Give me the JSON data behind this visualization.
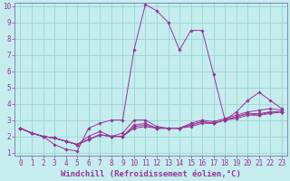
{
  "xlabel": "Windchill (Refroidissement éolien,°C)",
  "background_color": "#c5eded",
  "grid_color": "#9fd8d8",
  "line_color": "#993399",
  "spine_color": "#7777aa",
  "xlim": [
    -0.5,
    23.5
  ],
  "ylim": [
    0.8,
    10.2
  ],
  "xticks": [
    0,
    1,
    2,
    3,
    4,
    5,
    6,
    7,
    8,
    9,
    10,
    11,
    12,
    13,
    14,
    15,
    16,
    17,
    18,
    19,
    20,
    21,
    22,
    23
  ],
  "yticks": [
    1,
    2,
    3,
    4,
    5,
    6,
    7,
    8,
    9,
    10
  ],
  "lines": [
    {
      "x": [
        0,
        1,
        2,
        3,
        4,
        5,
        6,
        7,
        8,
        9,
        10,
        11,
        12,
        13,
        14,
        15,
        16,
        17,
        18,
        19,
        20,
        21,
        22,
        23
      ],
      "y": [
        2.5,
        2.2,
        2.0,
        1.5,
        1.2,
        1.1,
        2.5,
        2.8,
        3.0,
        3.0,
        7.3,
        10.1,
        9.7,
        9.0,
        7.3,
        8.5,
        8.5,
        5.8,
        3.0,
        3.5,
        4.2,
        4.7,
        4.2,
        3.7
      ]
    },
    {
      "x": [
        0,
        1,
        2,
        3,
        4,
        5,
        6,
        7,
        8,
        9,
        10,
        11,
        12,
        13,
        14,
        15,
        16,
        17,
        18,
        19,
        20,
        21,
        22,
        23
      ],
      "y": [
        2.5,
        2.2,
        2.0,
        1.9,
        1.7,
        1.5,
        2.0,
        2.3,
        2.0,
        2.2,
        3.0,
        3.0,
        2.6,
        2.5,
        2.5,
        2.8,
        3.0,
        2.9,
        3.1,
        3.3,
        3.5,
        3.6,
        3.7,
        3.6
      ]
    },
    {
      "x": [
        0,
        1,
        2,
        3,
        4,
        5,
        6,
        7,
        8,
        9,
        10,
        11,
        12,
        13,
        14,
        15,
        16,
        17,
        18,
        19,
        20,
        21,
        22,
        23
      ],
      "y": [
        2.5,
        2.2,
        2.0,
        1.9,
        1.7,
        1.5,
        1.8,
        2.1,
        2.0,
        2.0,
        2.7,
        2.8,
        2.5,
        2.5,
        2.5,
        2.7,
        2.9,
        2.8,
        3.0,
        3.2,
        3.4,
        3.4,
        3.5,
        3.5
      ]
    },
    {
      "x": [
        0,
        1,
        2,
        3,
        4,
        5,
        6,
        7,
        8,
        9,
        10,
        11,
        12,
        13,
        14,
        15,
        16,
        17,
        18,
        19,
        20,
        21,
        22,
        23
      ],
      "y": [
        2.5,
        2.2,
        2.0,
        1.9,
        1.7,
        1.5,
        1.8,
        2.1,
        2.0,
        2.0,
        2.6,
        2.7,
        2.5,
        2.5,
        2.5,
        2.7,
        2.9,
        2.8,
        3.0,
        3.2,
        3.4,
        3.3,
        3.5,
        3.5
      ]
    },
    {
      "x": [
        0,
        1,
        2,
        3,
        4,
        5,
        6,
        7,
        8,
        9,
        10,
        11,
        12,
        13,
        14,
        15,
        16,
        17,
        18,
        19,
        20,
        21,
        22,
        23
      ],
      "y": [
        2.5,
        2.2,
        2.0,
        1.9,
        1.7,
        1.5,
        1.8,
        2.1,
        2.0,
        2.0,
        2.5,
        2.6,
        2.5,
        2.5,
        2.5,
        2.6,
        2.8,
        2.8,
        3.0,
        3.1,
        3.3,
        3.3,
        3.4,
        3.5
      ]
    }
  ],
  "font_family": "monospace",
  "tick_fontsize": 5.5,
  "label_fontsize": 6.5
}
